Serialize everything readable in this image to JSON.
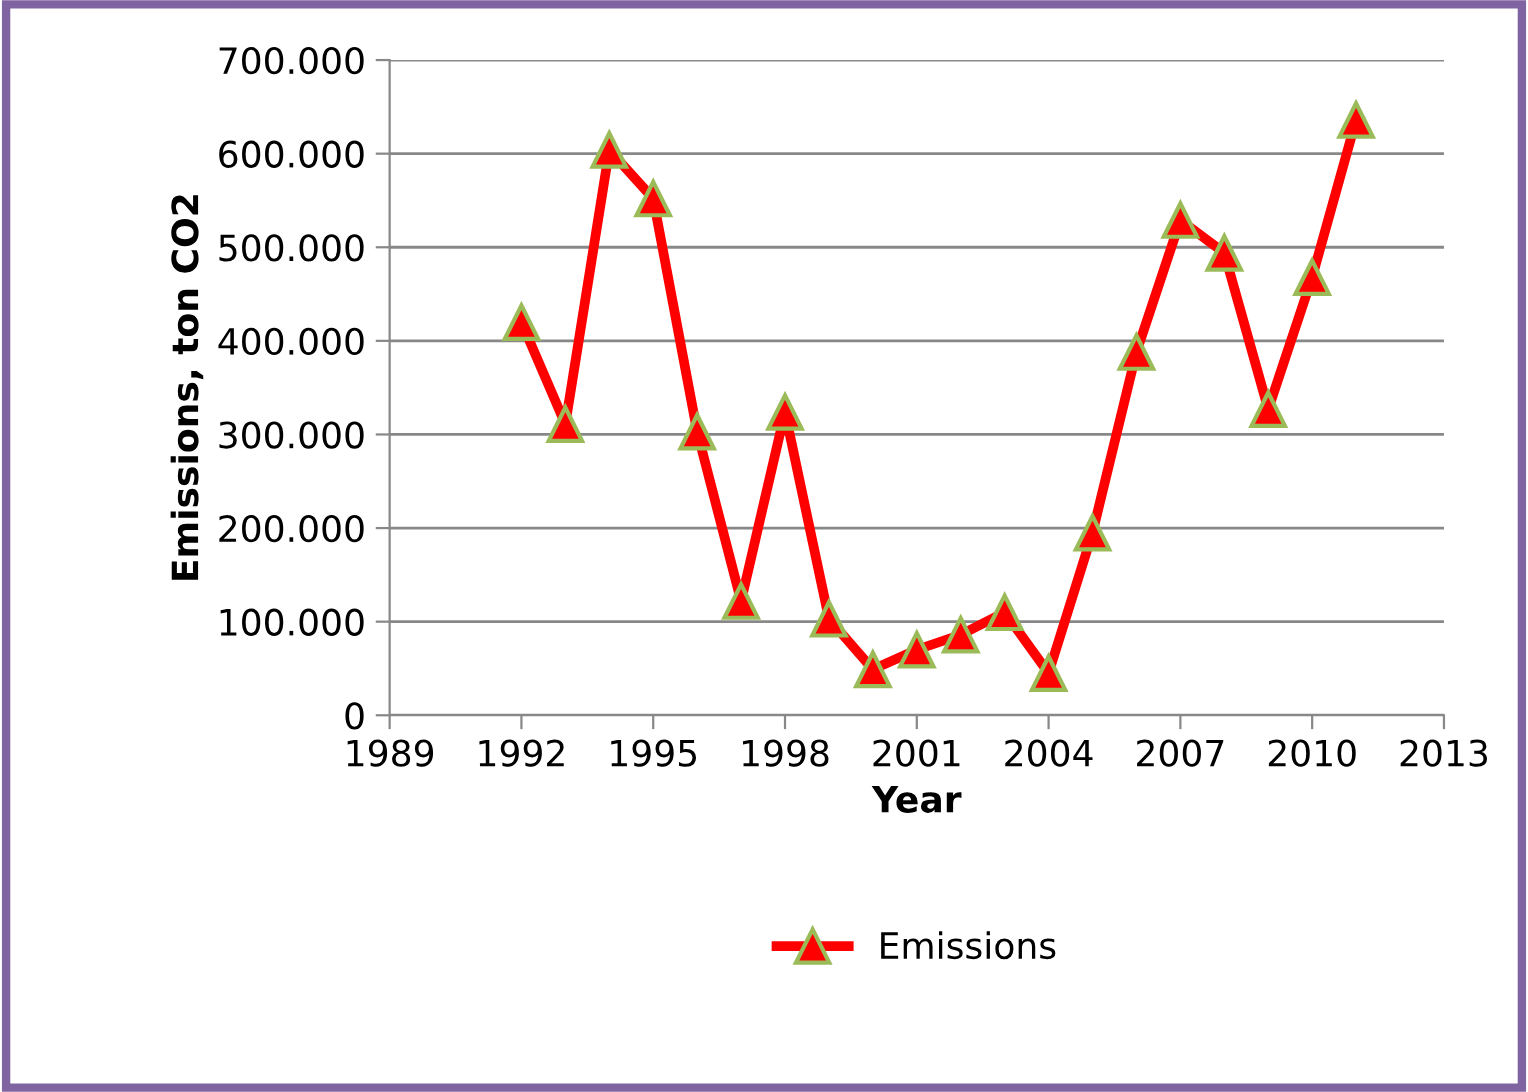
{
  "chart_data": {
    "type": "line",
    "xlabel": "Year",
    "ylabel": "Emissions, ton CO2",
    "x": [
      1992,
      1993,
      1994,
      1995,
      1996,
      1997,
      1998,
      1999,
      2000,
      2001,
      2002,
      2003,
      2004,
      2005,
      2006,
      2007,
      2008,
      2009,
      2010,
      2011
    ],
    "series": [
      {
        "name": "Emissions",
        "color": "#ff0000",
        "values": [
          420000,
          311000,
          604000,
          552000,
          303000,
          122000,
          324000,
          103000,
          49000,
          70000,
          86000,
          110000,
          45000,
          195000,
          388000,
          529000,
          494000,
          327000,
          468000,
          636000
        ]
      }
    ],
    "xlim": [
      1989,
      2013
    ],
    "xticks": [
      1989,
      1992,
      1995,
      1998,
      2001,
      2004,
      2007,
      2010,
      2013
    ],
    "ylim": [
      0,
      700000
    ],
    "yticks": [
      0,
      {
        "value": 100000,
        "label": "100.000"
      },
      {
        "value": 200000,
        "label": "200.000"
      },
      {
        "value": 300000,
        "label": "300.000"
      },
      {
        "value": 400000,
        "label": "400.000"
      },
      {
        "value": 500000,
        "label": "500.000"
      },
      {
        "value": 600000,
        "label": "600.000"
      },
      {
        "value": 700000,
        "label": "700.000"
      }
    ],
    "grid": "y",
    "legend": "bottom",
    "marker": "triangle",
    "line_style": "solid"
  }
}
